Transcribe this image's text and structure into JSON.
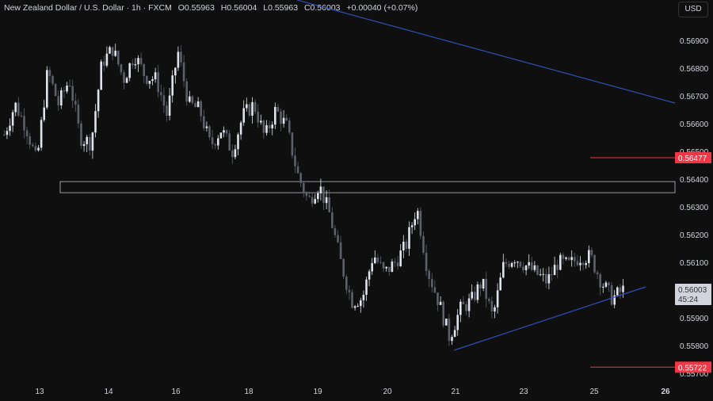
{
  "header": {
    "symbol": "New Zealand Dollar / U.S. Dollar · 1h · FXCM",
    "open": "O0.55963",
    "high": "H0.56004",
    "low": "L0.55963",
    "close": "C0.56003",
    "change": "+0.00040 (+0.07%)"
  },
  "currency_button": "USD",
  "colors": {
    "up": "#e0e3eb",
    "down": "#5d606b",
    "trendline": "#2f4fb8",
    "level": "#f23645",
    "zone": "#9598a1",
    "background": "#0f0f0f"
  },
  "chart_data": {
    "type": "candlestick",
    "y_ticks": [
      "0.56900",
      "0.56800",
      "0.56700",
      "0.56600",
      "0.56500",
      "0.56400",
      "0.56300",
      "0.56200",
      "0.56100",
      "0.55900",
      "0.55800",
      "0.55700"
    ],
    "x_ticks": [
      "13",
      "14",
      "16",
      "18",
      "19",
      "20",
      "21",
      "23",
      "25",
      "26"
    ],
    "ylim": [
      0.5569,
      0.5704
    ],
    "approx_closes": [
      0.5656,
      0.5667,
      0.5659,
      0.5646,
      0.5679,
      0.5667,
      0.5676,
      0.5655,
      0.5653,
      0.5682,
      0.5687,
      0.5676,
      0.5685,
      0.5677,
      0.5676,
      0.5663,
      0.5686,
      0.5667,
      0.5665,
      0.5652,
      0.5658,
      0.565,
      0.5663,
      0.5667,
      0.5655,
      0.5665,
      0.5659,
      0.5642,
      0.5632,
      0.5638,
      0.5627,
      0.561,
      0.5596,
      0.5597,
      0.5613,
      0.5606,
      0.561,
      0.5616,
      0.563,
      0.5607,
      0.5596,
      0.5583,
      0.5593,
      0.5596,
      0.5603,
      0.559,
      0.5609,
      0.5612,
      0.5609,
      0.5606,
      0.5603,
      0.561,
      0.5609,
      0.5612,
      0.5612,
      0.5603,
      0.5597,
      0.56
    ],
    "last_price": {
      "value": "0.56003",
      "countdown": "45:24"
    },
    "levels": [
      {
        "value": "0.56477"
      },
      {
        "value": "0.55722"
      }
    ],
    "zone": [
      0.56351,
      0.56391
    ]
  }
}
